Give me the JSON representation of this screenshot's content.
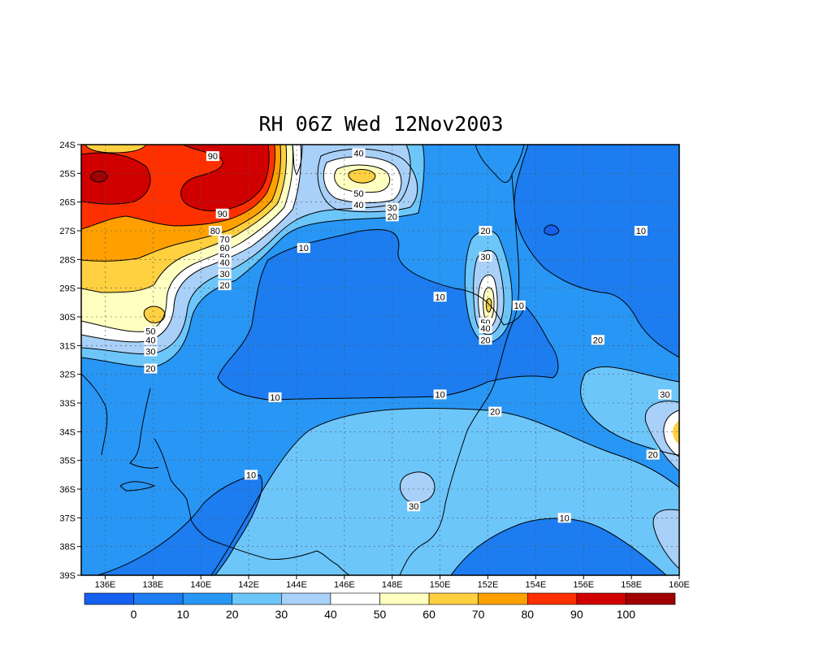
{
  "title": "RH 06Z Wed 12Nov2003",
  "lat_labels": [
    "24S",
    "25S",
    "26S",
    "27S",
    "28S",
    "29S",
    "30S",
    "31S",
    "32S",
    "33S",
    "34S",
    "35S",
    "36S",
    "37S",
    "38S",
    "39S"
  ],
  "lon_labels": [
    "136E",
    "138E",
    "140E",
    "142E",
    "144E",
    "146E",
    "148E",
    "150E",
    "152E",
    "154E",
    "156E",
    "158E",
    "160E"
  ],
  "contour_labels": [
    {
      "text": "90",
      "lon": 140.5,
      "lat": -24.4
    },
    {
      "text": "90",
      "lon": 140.9,
      "lat": -26.4
    },
    {
      "text": "80",
      "lon": 140.6,
      "lat": -27.0
    },
    {
      "text": "70",
      "lon": 141.0,
      "lat": -27.3
    },
    {
      "text": "60",
      "lon": 141.0,
      "lat": -27.6
    },
    {
      "text": "50",
      "lon": 141.0,
      "lat": -27.9
    },
    {
      "text": "40",
      "lon": 141.0,
      "lat": -28.1
    },
    {
      "text": "30",
      "lon": 141.0,
      "lat": -28.5
    },
    {
      "text": "20",
      "lon": 141.0,
      "lat": -28.9
    },
    {
      "text": "40",
      "lon": 146.6,
      "lat": -24.3
    },
    {
      "text": "50",
      "lon": 146.6,
      "lat": -25.7
    },
    {
      "text": "40",
      "lon": 146.6,
      "lat": -26.1
    },
    {
      "text": "30",
      "lon": 148.0,
      "lat": -26.2
    },
    {
      "text": "20",
      "lon": 148.0,
      "lat": -26.5
    },
    {
      "text": "10",
      "lon": 144.3,
      "lat": -27.6
    },
    {
      "text": "20",
      "lon": 151.9,
      "lat": -27.0
    },
    {
      "text": "30",
      "lon": 151.9,
      "lat": -27.9
    },
    {
      "text": "10",
      "lon": 150.0,
      "lat": -29.3
    },
    {
      "text": "10",
      "lon": 153.3,
      "lat": -29.6
    },
    {
      "text": "50",
      "lon": 151.9,
      "lat": -30.2
    },
    {
      "text": "40",
      "lon": 151.9,
      "lat": -30.4
    },
    {
      "text": "20",
      "lon": 151.9,
      "lat": -30.8
    },
    {
      "text": "10",
      "lon": 158.4,
      "lat": -27.0
    },
    {
      "text": "20",
      "lon": 156.6,
      "lat": -30.8
    },
    {
      "text": "50",
      "lon": 137.9,
      "lat": -30.5
    },
    {
      "text": "40",
      "lon": 137.9,
      "lat": -30.8
    },
    {
      "text": "30",
      "lon": 137.9,
      "lat": -31.2
    },
    {
      "text": "20",
      "lon": 137.9,
      "lat": -31.8
    },
    {
      "text": "10",
      "lon": 143.1,
      "lat": -32.8
    },
    {
      "text": "10",
      "lon": 150.0,
      "lat": -32.7
    },
    {
      "text": "20",
      "lon": 152.3,
      "lat": -33.3
    },
    {
      "text": "30",
      "lon": 159.4,
      "lat": -32.7
    },
    {
      "text": "20",
      "lon": 158.9,
      "lat": -34.8
    },
    {
      "text": "10",
      "lon": 142.1,
      "lat": -35.5
    },
    {
      "text": "30",
      "lon": 148.9,
      "lat": -36.6
    },
    {
      "text": "10",
      "lon": 155.2,
      "lat": -37.0
    }
  ],
  "colorbar": {
    "colors": [
      "#1560f0",
      "#1c7cf0",
      "#2896f5",
      "#6cc6fa",
      "#a8d0f8",
      "#ffffff",
      "#ffffc0",
      "#ffd040",
      "#ffa000",
      "#ff3000",
      "#d00000",
      "#a00000"
    ],
    "labels": [
      "0",
      "10",
      "20",
      "30",
      "40",
      "50",
      "60",
      "70",
      "80",
      "90",
      "100"
    ]
  },
  "fill_colors": {
    "lt10": "#1c7cf0",
    "r10": "#2896f5",
    "r20": "#6cc6fa",
    "r30": "#a8d0f8",
    "r40": "#ffffff",
    "r50": "#ffffc0",
    "r60": "#ffd040",
    "r70": "#ffa000",
    "r80": "#ff3000",
    "r90": "#d00000",
    "r100": "#a00000"
  }
}
